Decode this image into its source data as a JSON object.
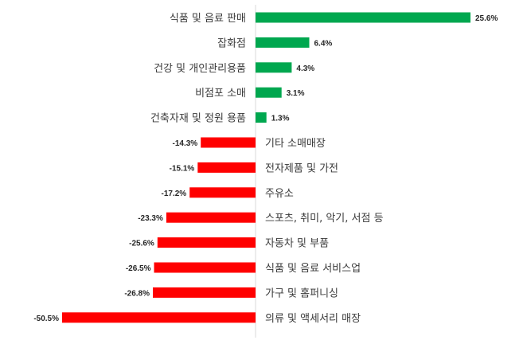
{
  "chart_data": {
    "type": "bar",
    "orientation": "horizontal",
    "title": "",
    "xlabel": "",
    "ylabel": "",
    "categories": [
      "식품 및 음료 판매",
      "잡화점",
      "건강 및 개인관리용품",
      "비점포 소매",
      "건축자재 및 정원 용품",
      "기타 소매매장",
      "전자제품 및 가전",
      "주유소",
      "스포츠, 취미, 악기, 서점 등",
      "자동차 및 부품",
      "식품 및 음료 서비스업",
      "가구 및 홈퍼니싱",
      "의류 및 액세서리 매장"
    ],
    "values": [
      25.6,
      6.4,
      4.3,
      3.1,
      1.3,
      -14.3,
      -15.1,
      -17.2,
      -23.3,
      -25.6,
      -26.5,
      -26.8,
      -50.5
    ],
    "value_labels": [
      "25.6%",
      "6.4%",
      "4.3%",
      "3.1%",
      "1.3%",
      "-14.3%",
      "-15.1%",
      "-17.2%",
      "-23.3%",
      "-25.6%",
      "-26.5%",
      "-26.8%",
      "-50.5%"
    ],
    "xlim": [
      -50.5,
      25.6
    ],
    "grid": false,
    "legend": "none",
    "colors": {
      "positive": "#00a74f",
      "negative": "#ff0000",
      "axis": "#d9d9d9"
    }
  }
}
